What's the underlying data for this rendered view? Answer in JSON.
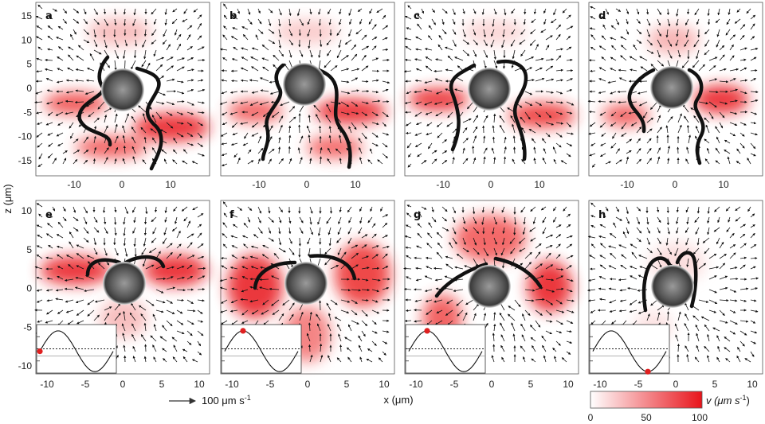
{
  "panels": [
    {
      "label": "a"
    },
    {
      "label": "b"
    },
    {
      "label": "c"
    },
    {
      "label": "d"
    },
    {
      "label": "e"
    },
    {
      "label": "f"
    },
    {
      "label": "g"
    },
    {
      "label": "h"
    }
  ],
  "top_row": {
    "y_ticks": [
      "15",
      "10",
      "5",
      "0",
      "-5",
      "-10",
      "-15"
    ],
    "x_ticks": [
      "-10",
      "0",
      "10"
    ]
  },
  "bottom_row": {
    "y_ticks": [
      "10",
      "5",
      "0",
      "-5",
      "-10"
    ],
    "x_ticks": [
      "-10",
      "-5",
      "0",
      "5",
      "10"
    ]
  },
  "labels": {
    "y_axis": "z (μm)",
    "x_axis": "x (μm)",
    "scale_arrow": "100 μm s",
    "scale_arrow_exp": "-1"
  },
  "colorbar": {
    "label": "v (μm s",
    "label_exp": "-1",
    "label_close": ")",
    "ticks": [
      "0",
      "50",
      "100"
    ],
    "color_min": "#ffffff",
    "color_max": "#e8141b"
  },
  "inset_phase": [
    0.0,
    0.25,
    0.25,
    0.75
  ]
}
